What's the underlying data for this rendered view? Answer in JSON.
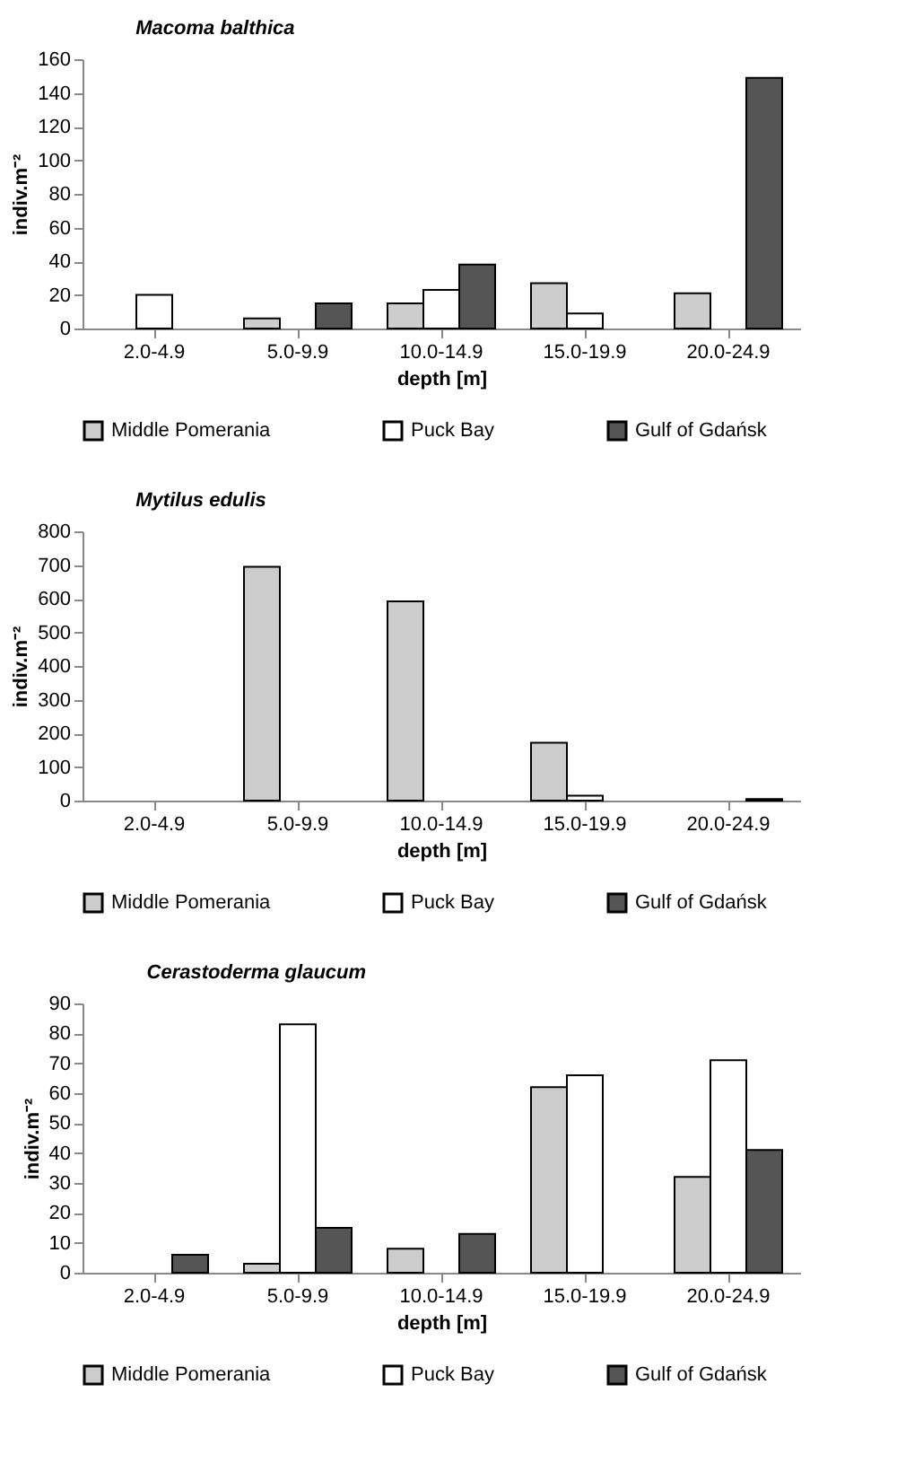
{
  "chart_data": [
    {
      "type": "bar",
      "title": "Macoma balthica",
      "xlabel": "depth [m]",
      "ylabel": "indiv.m⁻²",
      "categories": [
        "2.0-4.9",
        "5.0-9.9",
        "10.0-14.9",
        "15.0-19.9",
        "20.0-24.9"
      ],
      "ylim": [
        0,
        160
      ],
      "yticks": [
        0,
        20,
        40,
        60,
        80,
        100,
        120,
        140,
        160
      ],
      "grid": false,
      "legend": "bottom",
      "series": [
        {
          "name": "Middle Pomerania",
          "color": "#cccccc",
          "values": [
            null,
            6,
            15,
            27,
            21
          ]
        },
        {
          "name": "Puck Bay",
          "color": "#ffffff",
          "values": [
            20,
            null,
            23,
            9,
            null
          ]
        },
        {
          "name": "Gulf of Gdańsk",
          "color": "#555555",
          "values": [
            null,
            15,
            38,
            null,
            149
          ]
        }
      ]
    },
    {
      "type": "bar",
      "title": "Mytilus edulis",
      "xlabel": "depth [m]",
      "ylabel": "indiv.m⁻²",
      "categories": [
        "2.0-4.9",
        "5.0-9.9",
        "10.0-14.9",
        "15.0-19.9",
        "20.0-24.9"
      ],
      "ylim": [
        0,
        800
      ],
      "yticks": [
        0,
        100,
        200,
        300,
        400,
        500,
        600,
        700,
        800
      ],
      "grid": false,
      "legend": "bottom",
      "series": [
        {
          "name": "Middle Pomerania",
          "color": "#cccccc",
          "values": [
            null,
            695,
            592,
            172,
            null
          ]
        },
        {
          "name": "Puck Bay",
          "color": "#ffffff",
          "values": [
            null,
            null,
            null,
            15,
            null
          ]
        },
        {
          "name": "Gulf of Gdańsk",
          "color": "#555555",
          "values": [
            null,
            null,
            null,
            null,
            5
          ]
        }
      ]
    },
    {
      "type": "bar",
      "title": "Cerastoderma glaucum",
      "xlabel": "depth [m]",
      "ylabel": "indiv.m⁻²",
      "categories": [
        "2.0-4.9",
        "5.0-9.9",
        "10.0-14.9",
        "15.0-19.9",
        "20.0-24.9"
      ],
      "ylim": [
        0,
        90
      ],
      "yticks": [
        0,
        10,
        20,
        30,
        40,
        50,
        60,
        70,
        80,
        90
      ],
      "grid": false,
      "legend": "bottom",
      "series": [
        {
          "name": "Middle Pomerania",
          "color": "#cccccc",
          "values": [
            null,
            3,
            8,
            62,
            32
          ]
        },
        {
          "name": "Puck Bay",
          "color": "#ffffff",
          "values": [
            null,
            83,
            null,
            66,
            71
          ]
        },
        {
          "name": "Gulf of Gdańsk",
          "color": "#555555",
          "values": [
            6,
            15,
            13,
            null,
            41
          ]
        }
      ]
    }
  ]
}
